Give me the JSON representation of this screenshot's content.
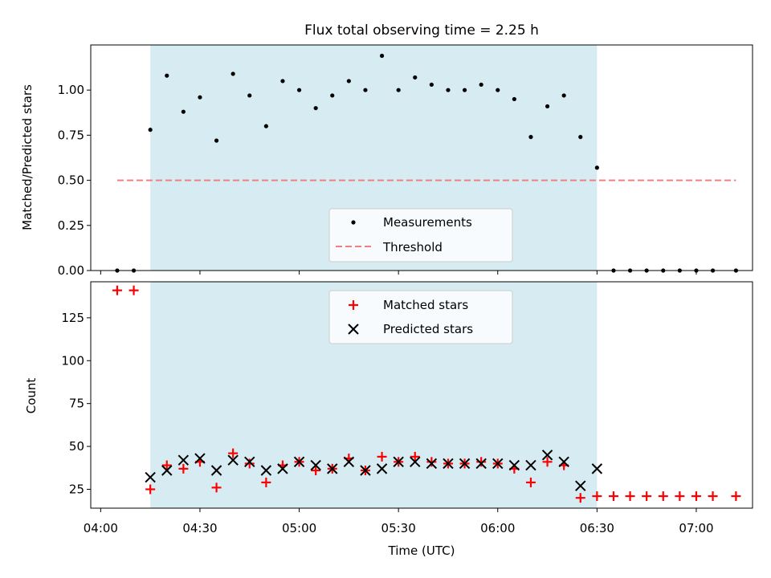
{
  "title": "Flux total observing time = 2.25 h",
  "colors": {
    "highlight": "#add8e6",
    "measurement": "#000000",
    "threshold": "#f08080",
    "matched": "#ff0000",
    "predicted": "#000000"
  },
  "chart_data": [
    {
      "type": "scatter",
      "ylabel": "Matched/Predicted stars",
      "ylim": [
        0,
        1.25
      ],
      "yticks": [
        0.0,
        0.25,
        0.5,
        0.75,
        1.0
      ],
      "ytick_labels": [
        "0.00",
        "0.25",
        "0.50",
        "0.75",
        "1.00"
      ],
      "xlim_minutes": [
        237,
        437
      ],
      "highlight_span": [
        "04:15",
        "06:30"
      ],
      "legend": {
        "placement": "lower center",
        "entries": [
          "Measurements",
          "Threshold"
        ]
      },
      "series": [
        {
          "name": "Measurements",
          "x": [
            "04:05",
            "04:10",
            "04:15",
            "04:20",
            "04:25",
            "04:30",
            "04:35",
            "04:40",
            "04:45",
            "04:50",
            "04:55",
            "05:00",
            "05:05",
            "05:10",
            "05:15",
            "05:20",
            "05:25",
            "05:30",
            "05:35",
            "05:40",
            "05:45",
            "05:50",
            "05:55",
            "06:00",
            "06:05",
            "06:10",
            "06:15",
            "06:20",
            "06:25",
            "06:30",
            "06:35",
            "06:40",
            "06:45",
            "06:50",
            "06:55",
            "07:00",
            "07:05",
            "07:12"
          ],
          "y": [
            0,
            0,
            0.78,
            1.08,
            0.88,
            0.96,
            0.72,
            1.09,
            0.97,
            0.8,
            1.05,
            1.0,
            0.9,
            0.97,
            1.05,
            1.0,
            1.19,
            1.0,
            1.07,
            1.03,
            1.0,
            1.0,
            1.03,
            1.0,
            0.95,
            0.74,
            0.91,
            0.97,
            0.74,
            0.57,
            0,
            0,
            0,
            0,
            0,
            0,
            0,
            0
          ]
        },
        {
          "name": "Threshold",
          "x": [
            "04:05",
            "07:12"
          ],
          "y": [
            0.5,
            0.5
          ]
        }
      ]
    },
    {
      "type": "scatter",
      "xlabel": "Time (UTC)",
      "ylabel": "Count",
      "ylim": [
        14,
        146
      ],
      "yticks": [
        25,
        50,
        75,
        100,
        125
      ],
      "xlim_minutes": [
        237,
        437
      ],
      "xticks": [
        "04:00",
        "04:30",
        "05:00",
        "05:30",
        "06:00",
        "06:30",
        "07:00"
      ],
      "highlight_span": [
        "04:15",
        "06:30"
      ],
      "legend": {
        "placement": "upper center",
        "entries": [
          "Matched stars",
          "Predicted stars"
        ]
      },
      "series": [
        {
          "name": "Matched stars",
          "x": [
            "04:05",
            "04:10",
            "04:15",
            "04:20",
            "04:25",
            "04:30",
            "04:35",
            "04:40",
            "04:45",
            "04:50",
            "04:55",
            "05:00",
            "05:05",
            "05:10",
            "05:15",
            "05:20",
            "05:25",
            "05:30",
            "05:35",
            "05:40",
            "05:45",
            "05:50",
            "05:55",
            "06:00",
            "06:05",
            "06:10",
            "06:15",
            "06:20",
            "06:25",
            "06:30",
            "06:35",
            "06:40",
            "06:45",
            "06:50",
            "06:55",
            "07:00",
            "07:05",
            "07:12"
          ],
          "y": [
            141,
            141,
            25,
            39,
            37,
            41,
            26,
            46,
            40,
            29,
            39,
            41,
            36,
            37,
            43,
            36,
            44,
            41,
            44,
            41,
            40,
            40,
            41,
            40,
            37,
            29,
            41,
            39,
            20,
            21,
            21,
            21,
            21,
            21,
            21,
            21,
            21,
            21
          ]
        },
        {
          "name": "Predicted stars",
          "x": [
            "04:15",
            "04:20",
            "04:25",
            "04:30",
            "04:35",
            "04:40",
            "04:45",
            "04:50",
            "04:55",
            "05:00",
            "05:05",
            "05:10",
            "05:15",
            "05:20",
            "05:25",
            "05:30",
            "05:35",
            "05:40",
            "05:45",
            "05:50",
            "05:55",
            "06:00",
            "06:05",
            "06:10",
            "06:15",
            "06:20",
            "06:25",
            "06:30"
          ],
          "y": [
            32,
            36,
            42,
            43,
            36,
            42,
            41,
            36,
            37,
            41,
            39,
            37,
            41,
            36,
            37,
            41,
            41,
            40,
            40,
            40,
            40,
            40,
            39,
            39,
            45,
            41,
            27,
            37
          ]
        }
      ]
    }
  ]
}
